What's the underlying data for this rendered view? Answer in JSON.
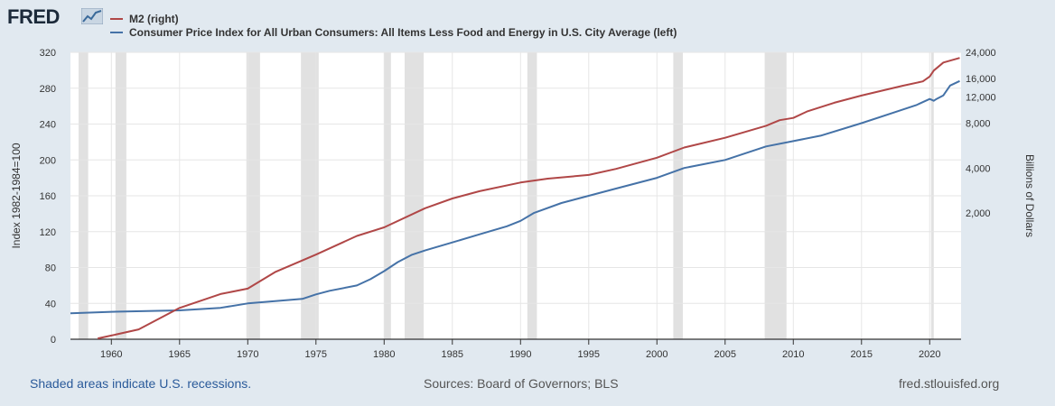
{
  "header": {
    "logo_text": "FRED",
    "logo_icon": "chart-graph-icon"
  },
  "legend": [
    {
      "label": "M2 (right)",
      "color": "#b04747"
    },
    {
      "label": "Consumer Price Index for All Urban Consumers: All Items Less Food and Energy in U.S. City Average (left)",
      "color": "#4572a7"
    }
  ],
  "footer": {
    "recession_note": "Shaded areas indicate U.S. recessions.",
    "sources": "Sources: Board of Governors; BLS",
    "site": "fred.stlouisfed.org"
  },
  "chart_data": {
    "type": "line",
    "ylabel_left": "Index 1982-1984=100",
    "ylabel_right": "Billions of Dollars",
    "x_ticks": [
      1960,
      1965,
      1970,
      1975,
      1980,
      1985,
      1990,
      1995,
      2000,
      2005,
      2010,
      2015,
      2020
    ],
    "xlim": [
      1957,
      2022.3
    ],
    "y_left_ticks": [
      0,
      40,
      80,
      120,
      160,
      200,
      240,
      280,
      320
    ],
    "ylim_left": [
      0,
      320
    ],
    "y_right_ticks": [
      2000,
      4000,
      8000,
      12000,
      16000,
      24000
    ],
    "y_right_tick_labels": [
      "2,000",
      "4,000",
      "8,000",
      "12,000",
      "16,000",
      "24,000"
    ],
    "y_right_scale": "log",
    "grid": true,
    "recessions": [
      [
        1957.6,
        1958.3
      ],
      [
        1960.3,
        1961.1
      ],
      [
        1969.9,
        1970.9
      ],
      [
        1973.9,
        1975.2
      ],
      [
        1980.0,
        1980.5
      ],
      [
        1981.5,
        1982.9
      ],
      [
        1990.5,
        1991.2
      ],
      [
        2001.2,
        2001.9
      ],
      [
        2007.9,
        2009.5
      ],
      [
        2020.1,
        2020.3
      ]
    ],
    "series": [
      {
        "name": "Consumer Price Index for All Urban Consumers: All Items Less Food and Energy in U.S. City Average",
        "axis": "left",
        "color": "#4572a7",
        "x": [
          1957,
          1960,
          1965,
          1968,
          1970,
          1972,
          1974,
          1975,
          1976,
          1978,
          1979,
          1980,
          1981,
          1982,
          1983,
          1985,
          1987,
          1989,
          1990,
          1991,
          1993,
          1995,
          1997,
          2000,
          2002,
          2005,
          2008,
          2010,
          2012,
          2015,
          2018,
          2019,
          2020,
          2020.3,
          2020.5,
          2021,
          2021.5,
          2022.2
        ],
        "y": [
          28.9,
          30.6,
          32.2,
          35.0,
          40.0,
          42.5,
          45.0,
          50.0,
          54.0,
          60.0,
          67.0,
          76.0,
          86.0,
          94.0,
          99.0,
          108.0,
          117.0,
          126.0,
          132.0,
          141.0,
          152.0,
          160.0,
          168.0,
          180.0,
          191.0,
          200.0,
          215.0,
          221.0,
          227.0,
          241.0,
          256.0,
          261.0,
          268.0,
          266.0,
          268.0,
          272.0,
          283.0,
          288.0
        ]
      },
      {
        "name": "M2",
        "axis": "right",
        "color": "#b04747",
        "x": [
          1959,
          1960,
          1962,
          1965,
          1968,
          1970,
          1972,
          1975,
          1978,
          1980,
          1983,
          1985,
          1987,
          1990,
          1992,
          1995,
          1997,
          2000,
          2002,
          2005,
          2008,
          2009,
          2010,
          2011,
          2013,
          2015,
          2018,
          2019.5,
          2020,
          2020.3,
          2021,
          2022.2
        ],
        "y": [
          287,
          300,
          330,
          460,
          570,
          620,
          800,
          1050,
          1400,
          1600,
          2150,
          2500,
          2800,
          3200,
          3400,
          3600,
          3950,
          4700,
          5500,
          6400,
          7700,
          8400,
          8700,
          9600,
          11000,
          12300,
          14300,
          15300,
          16500,
          18100,
          20500,
          22000
        ]
      }
    ]
  }
}
